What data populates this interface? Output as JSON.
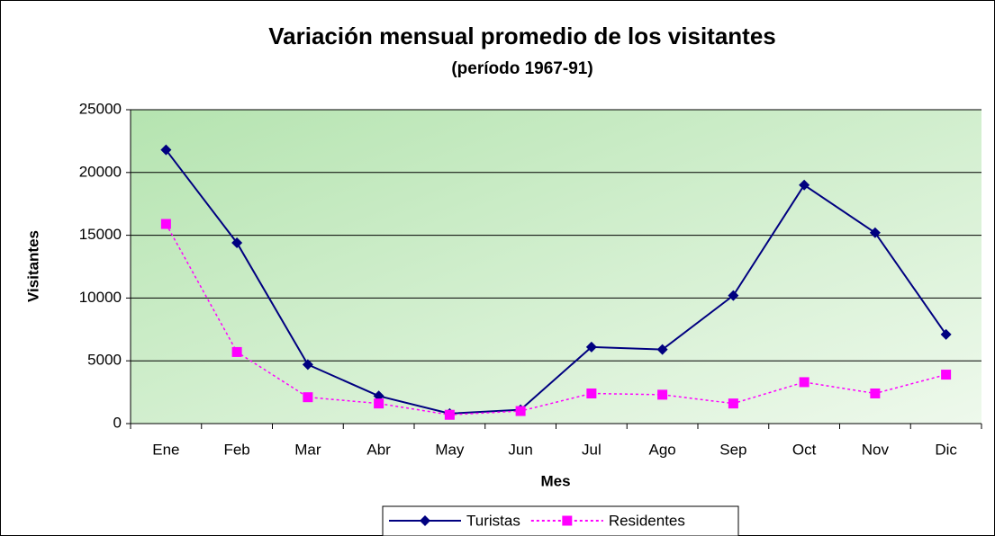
{
  "chart_data": {
    "type": "line",
    "title": "Variación mensual promedio de los visitantes",
    "subtitle": "(período 1967-91)",
    "x_label": "Mes",
    "y_label": "Visitantes",
    "categories": [
      "Ene",
      "Feb",
      "Mar",
      "Abr",
      "May",
      "Jun",
      "Jul",
      "Ago",
      "Sep",
      "Oct",
      "Nov",
      "Dic"
    ],
    "series": [
      {
        "name": "Turistas",
        "color": "#000080",
        "marker": "diamond",
        "dash": false,
        "values": [
          21800,
          14400,
          4700,
          2200,
          800,
          1100,
          6100,
          5900,
          10200,
          19000,
          15200,
          7100
        ]
      },
      {
        "name": "Residentes",
        "color": "#ff00ff",
        "marker": "square",
        "dash": true,
        "values": [
          15900,
          5700,
          2100,
          1600,
          700,
          1000,
          2400,
          2300,
          1600,
          3300,
          2400,
          3900
        ]
      }
    ],
    "ylim": [
      0,
      25000
    ],
    "yticks": [
      0,
      5000,
      10000,
      15000,
      20000,
      25000
    ],
    "grid": true,
    "legend": "bottom"
  }
}
